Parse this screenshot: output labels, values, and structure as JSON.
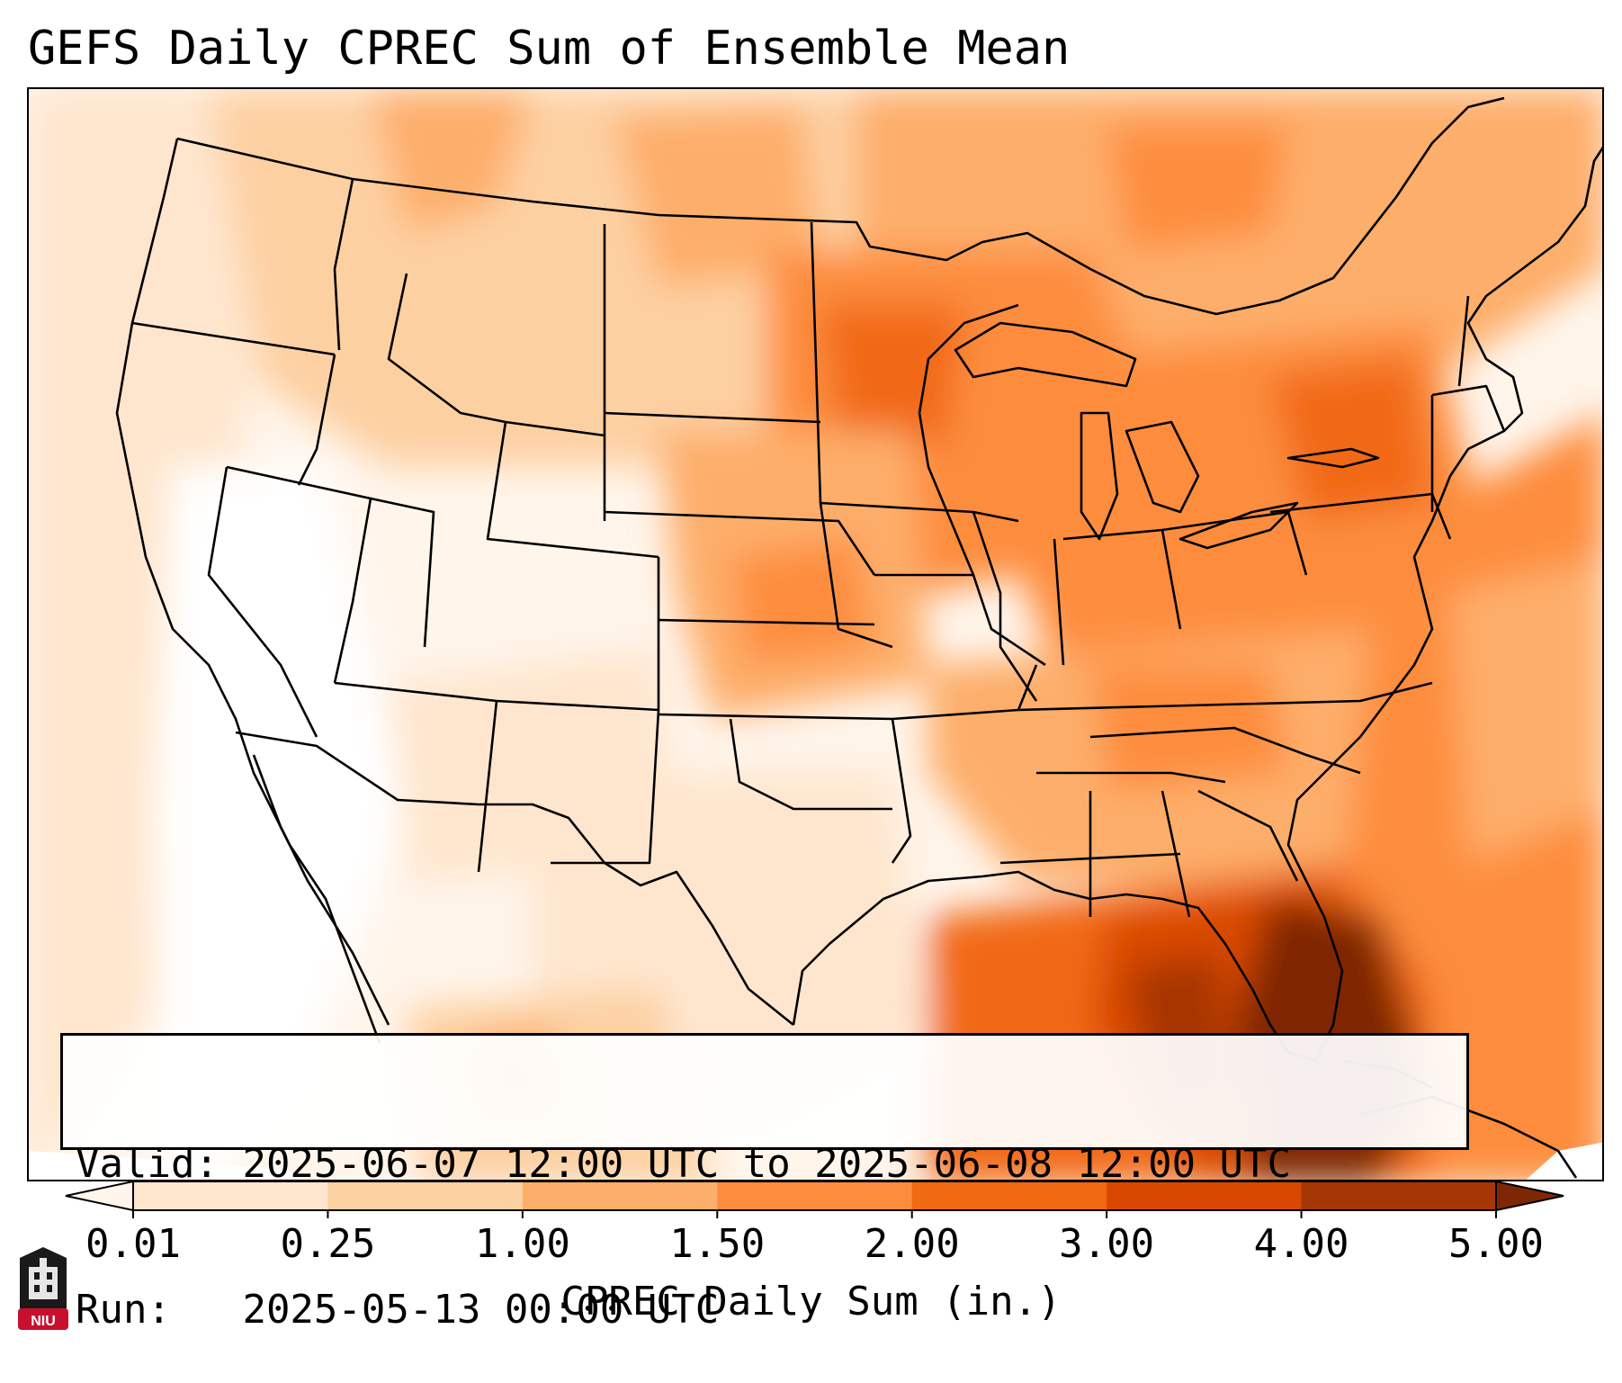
{
  "title": "GEFS Daily CPREC Sum of Ensemble Mean",
  "info": {
    "valid_label": "Valid:",
    "valid_value": "2025-06-07 12:00 UTC to 2025-06-08 12:00 UTC",
    "run_label": "Run:",
    "run_value": "2025-05-13 00:00 UTC"
  },
  "colorbar": {
    "label": "CPREC Daily Sum (in.)",
    "ticks": [
      "0.01",
      "0.25",
      "1.00",
      "1.50",
      "2.00",
      "3.00",
      "4.00",
      "5.00"
    ],
    "levels": [
      0.01,
      0.25,
      1.0,
      1.5,
      2.0,
      3.0,
      4.0,
      5.0
    ],
    "colors": [
      "#fff5eb",
      "#fee6ce",
      "#fdd0a2",
      "#fdae6b",
      "#fd8d3c",
      "#f16913",
      "#d94801",
      "#a63603",
      "#7f2704"
    ],
    "extend": "both"
  },
  "logo": {
    "text": "NIU",
    "name": "niu-logo"
  },
  "map": {
    "projection": "conus-lambert",
    "field": "CPREC daily sum ensemble mean",
    "regions": [
      {
        "name": "west-coast-ocean",
        "level": "0.01-0.25"
      },
      {
        "name": "desert-southwest",
        "level": "0.01-0.25"
      },
      {
        "name": "northern-rockies",
        "level": "0.25-1.00"
      },
      {
        "name": "northern-plains",
        "level": "1.00-2.00"
      },
      {
        "name": "great-lakes-midwest",
        "level": "1.00-2.00"
      },
      {
        "name": "southeast",
        "level": "1.00-2.00"
      },
      {
        "name": "florida-gulf",
        "level": "3.00-5.00"
      },
      {
        "name": "western-atlantic",
        "level": "1.00-2.00"
      }
    ]
  }
}
